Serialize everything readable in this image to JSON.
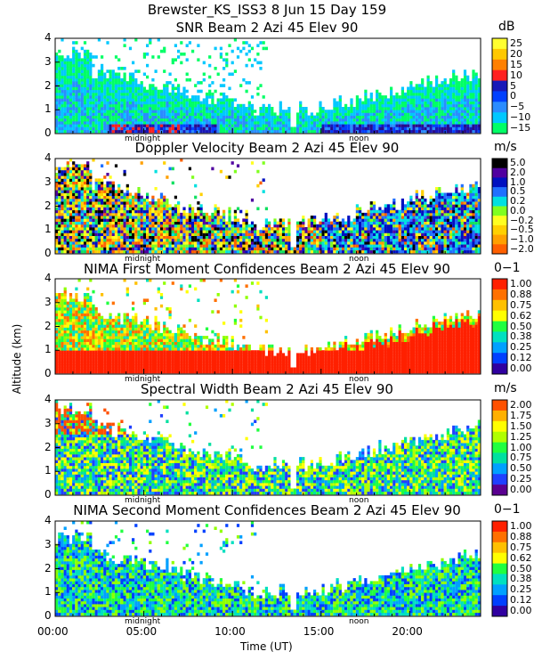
{
  "header": {
    "title_line": "Brewster_KS_ISS3   8 Jun 15 Day 159"
  },
  "axes": {
    "ylabel": "Altitude (km)",
    "xlabel": "Time (UT)",
    "x_tick_labels": [
      "00:00",
      "05:00",
      "10:00",
      "15:00",
      "20:00"
    ],
    "y_tick_labels": [
      "0",
      "1",
      "2",
      "3",
      "4"
    ],
    "midnight_label": "midnight",
    "noon_label": "noon"
  },
  "colors": {
    "snr": [
      "#00ff66",
      "#00c8ff",
      "#2a8cff",
      "#0040ff",
      "#1818b8",
      "#2a0a8a",
      "#ff2020",
      "#ff8000",
      "#ffc800",
      "#ffff30"
    ],
    "doppler": [
      "#ff6000",
      "#ffa000",
      "#ffd000",
      "#ffff20",
      "#80ff20",
      "#10e060",
      "#00e0e0",
      "#2070ff",
      "#0010c0",
      "#5000a0",
      "#000000"
    ],
    "confidence": [
      "#3000a0",
      "#0040ff",
      "#00a0ff",
      "#00e0c0",
      "#20ff40",
      "#90ff00",
      "#ffff00",
      "#ffc000",
      "#ff7000",
      "#ff2000"
    ],
    "width": [
      "#5a0090",
      "#2040ff",
      "#00a0ff",
      "#00e0a0",
      "#20ff40",
      "#b0ff00",
      "#ffff00",
      "#ffb000",
      "#ff5000"
    ]
  },
  "chart_data": [
    {
      "type": "heatmap",
      "title": "SNR Beam 2 Azi  45 Elev 90",
      "colorbar_unit": "dB",
      "colorbar_ticks": [
        "25",
        "20",
        "15",
        "10",
        "5",
        "0",
        "−5",
        "−10",
        "−15"
      ],
      "colorbar_min": -15,
      "colorbar_max": 25,
      "x_range_hours": [
        0,
        24
      ],
      "y_range_km": [
        0,
        4
      ],
      "scheme": "snr"
    },
    {
      "type": "heatmap",
      "title": "Doppler Velocity Beam 2 Azi  45 Elev 90",
      "colorbar_unit": "m/s",
      "colorbar_ticks": [
        "5.0",
        "2.0",
        "1.0",
        "0.5",
        "0.2",
        "0.0",
        "−0.2",
        "−0.5",
        "−1.0",
        "−2.0"
      ],
      "x_range_hours": [
        0,
        24
      ],
      "y_range_km": [
        0,
        4
      ],
      "scheme": "doppler"
    },
    {
      "type": "heatmap",
      "title": "NIMA First Moment Confidences Beam 2 Azi  45 Elev 90",
      "colorbar_unit": "0−1",
      "colorbar_ticks": [
        "1.00",
        "0.88",
        "0.75",
        "0.62",
        "0.50",
        "0.38",
        "0.25",
        "0.12",
        "0.00"
      ],
      "colorbar_min": 0,
      "colorbar_max": 1,
      "x_range_hours": [
        0,
        24
      ],
      "y_range_km": [
        0,
        4
      ],
      "scheme": "confidence"
    },
    {
      "type": "heatmap",
      "title": "Spectral Width Beam 2 Azi  45 Elev 90",
      "colorbar_unit": "m/s",
      "colorbar_ticks": [
        "2.00",
        "1.75",
        "1.50",
        "1.25",
        "1.00",
        "0.75",
        "0.50",
        "0.25",
        "0.00"
      ],
      "colorbar_min": 0,
      "colorbar_max": 2,
      "x_range_hours": [
        0,
        24
      ],
      "y_range_km": [
        0,
        4
      ],
      "scheme": "width"
    },
    {
      "type": "heatmap",
      "title": "NIMA Second Moment Confidences Beam 2 Azi  45 Elev 90",
      "colorbar_unit": "0−1",
      "colorbar_ticks": [
        "1.00",
        "0.88",
        "0.75",
        "0.62",
        "0.50",
        "0.38",
        "0.25",
        "0.12",
        "0.00"
      ],
      "colorbar_min": 0,
      "colorbar_max": 1,
      "x_range_hours": [
        0,
        24
      ],
      "y_range_km": [
        0,
        4
      ],
      "scheme": "confidence"
    }
  ]
}
